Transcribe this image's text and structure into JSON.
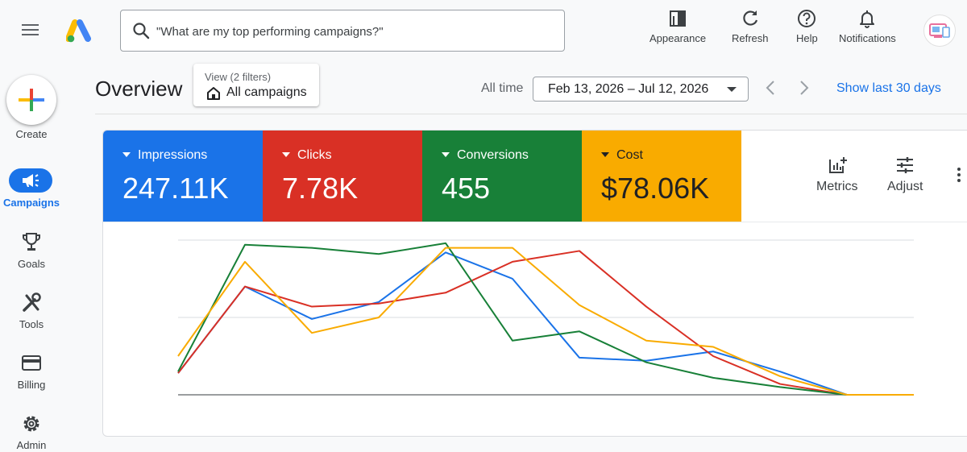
{
  "search": {
    "placeholder": "\"What are my top performing campaigns?\""
  },
  "toolbar": {
    "appearance": "Appearance",
    "refresh": "Refresh",
    "help": "Help",
    "notifications": "Notifications"
  },
  "nav": {
    "create": "Create",
    "campaigns": "Campaigns",
    "goals": "Goals",
    "tools": "Tools",
    "billing": "Billing",
    "admin": "Admin"
  },
  "header": {
    "title": "Overview",
    "view_filters": "View (2 filters)",
    "view_name": "All campaigns",
    "range_label": "All time",
    "date_range": "Feb 13, 2026 – Jul 12, 2026",
    "show_last": "Show last 30 days"
  },
  "metrics": [
    {
      "label": "Impressions",
      "value": "247.11K",
      "color": "#1a73e8"
    },
    {
      "label": "Clicks",
      "value": "7.78K",
      "color": "#d93025"
    },
    {
      "label": "Conversions",
      "value": "455",
      "color": "#188038"
    },
    {
      "label": "Cost",
      "value": "$78.06K",
      "color": "#f9ab00"
    }
  ],
  "card_tools": {
    "metrics": "Metrics",
    "adjust": "Adjust"
  },
  "colors": {
    "accent": "#1a73e8",
    "blue": "#1a73e8",
    "red": "#d93025",
    "green": "#188038",
    "yellow": "#f9ab00"
  },
  "chart_data": {
    "type": "line",
    "x": [
      0,
      1,
      2,
      3,
      4,
      5,
      6,
      7,
      8,
      9,
      10,
      11
    ],
    "ylim": [
      0,
      100
    ],
    "grid": true,
    "series": [
      {
        "color": "#1a73e8",
        "values": [
          14,
          70,
          49,
          60,
          92,
          75,
          24,
          22,
          28,
          15,
          0,
          0
        ]
      },
      {
        "color": "#d93025",
        "values": [
          14,
          70,
          57,
          59,
          66,
          86,
          93,
          57,
          25,
          7,
          0,
          0
        ]
      },
      {
        "color": "#188038",
        "values": [
          15,
          97,
          95,
          91,
          98,
          35,
          41,
          21,
          11,
          5,
          0,
          0
        ]
      },
      {
        "color": "#f9ab00",
        "values": [
          25,
          86,
          40,
          50,
          95,
          95,
          58,
          35,
          31,
          12,
          0,
          0
        ]
      }
    ]
  }
}
